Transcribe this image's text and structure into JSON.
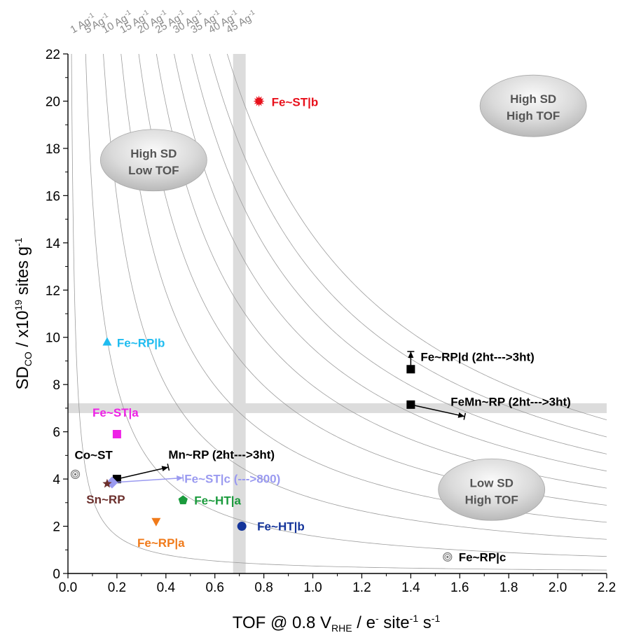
{
  "chart_data": {
    "type": "scatter",
    "title": "",
    "x_axis": {
      "range": [
        0.0,
        2.2
      ],
      "ticks": [
        "0.0",
        "0.2",
        "0.4",
        "0.6",
        "0.8",
        "1.0",
        "1.2",
        "1.4",
        "1.6",
        "1.8",
        "2.0",
        "2.2"
      ],
      "label_main": "TOF @ 0.8 V",
      "label_sub": "RHE",
      "label_mid": " / e",
      "label_sup1": "-",
      "label_mid2": " site",
      "label_sup2": "-1",
      "label_mid3": " s",
      "label_sup3": "-1"
    },
    "y_axis": {
      "range": [
        0,
        22
      ],
      "ticks": [
        "0",
        "2",
        "4",
        "6",
        "8",
        "10",
        "12",
        "14",
        "16",
        "18",
        "20",
        "22"
      ],
      "label_main": "SD",
      "label_sub": "CO",
      "label_mid": " / x10",
      "label_sup1": "19",
      "label_mid2": " sites g",
      "label_sup2": "-1"
    },
    "iso_current_curves": [
      {
        "value": 1,
        "text": "1 Ag",
        "sup": "-1"
      },
      {
        "value": 5,
        "text": "5 Ag",
        "sup": "-1"
      },
      {
        "value": 10,
        "text": "10 Ag",
        "sup": "-1"
      },
      {
        "value": 15,
        "text": "15 Ag",
        "sup": "-1"
      },
      {
        "value": 20,
        "text": "20 Ag",
        "sup": "-1"
      },
      {
        "value": 25,
        "text": "25 Ag",
        "sup": "-1"
      },
      {
        "value": 30,
        "text": "30 Ag",
        "sup": "-1"
      },
      {
        "value": 35,
        "text": "35 Ag",
        "sup": "-1"
      },
      {
        "value": 40,
        "text": "40 Ag",
        "sup": "-1"
      },
      {
        "value": 45,
        "text": "45 Ag",
        "sup": "-1"
      }
    ],
    "threshold_lines": {
      "x": 0.7,
      "y": 7.0
    },
    "regions": [
      {
        "line1": "High SD",
        "line2": "Low TOF",
        "x": 0.35,
        "y": 17.5
      },
      {
        "line1": "High SD",
        "line2": "High TOF",
        "x": 1.9,
        "y": 19.8
      },
      {
        "line1": "Low SD",
        "line2": "High TOF",
        "x": 1.73,
        "y": 3.55
      }
    ],
    "points": [
      {
        "label": "Fe~ST|b",
        "x": 0.78,
        "y": 20.0,
        "color": "#e8101b",
        "marker": "burst"
      },
      {
        "label": "Fe~RP|b",
        "x": 0.16,
        "y": 9.8,
        "color": "#1fbcf0",
        "marker": "triangle-up"
      },
      {
        "label": "Fe~ST|a",
        "x": 0.2,
        "y": 5.9,
        "color": "#ee22e6",
        "marker": "square"
      },
      {
        "label": "Co~ST",
        "x": 0.03,
        "y": 4.2,
        "color": "#777777",
        "marker": "swirl"
      },
      {
        "label": "Sn~RP",
        "x": 0.16,
        "y": 3.8,
        "color": "#6b2f2c",
        "marker": "star"
      },
      {
        "label": "Fe~RP|a",
        "x": 0.36,
        "y": 2.2,
        "color": "#f07a1a",
        "marker": "triangle-down"
      },
      {
        "label": "Fe~HT|a",
        "x": 0.47,
        "y": 3.1,
        "color": "#1a9a3c",
        "marker": "pentagon"
      },
      {
        "label": "Fe~HT|b",
        "x": 0.71,
        "y": 2.0,
        "color": "#14349a",
        "marker": "circle"
      },
      {
        "label": "Fe~RP|c",
        "x": 1.55,
        "y": 0.7,
        "color": "#777777",
        "marker": "swirl"
      }
    ],
    "transitions": [
      {
        "label": "Mn~RP (2ht--->3ht)",
        "from": {
          "x": 0.2,
          "y": 4.0
        },
        "to": {
          "x": 0.41,
          "y": 4.5
        },
        "color": "#000000"
      },
      {
        "label": "Fe~ST|c (--->800)",
        "from": {
          "x": 0.18,
          "y": 3.85
        },
        "to": {
          "x": 0.47,
          "y": 4.05
        },
        "color": "#9a9af0"
      },
      {
        "label": "FeMn~RP (2ht--->3ht)",
        "from": {
          "x": 1.4,
          "y": 7.15
        },
        "to": {
          "x": 1.62,
          "y": 6.65
        },
        "color": "#000000"
      },
      {
        "label": "Fe~RP|d (2ht--->3ht)",
        "from": {
          "x": 1.4,
          "y": 8.65
        },
        "to": {
          "x": 1.4,
          "y": 9.4
        },
        "color": "#000000"
      }
    ]
  }
}
